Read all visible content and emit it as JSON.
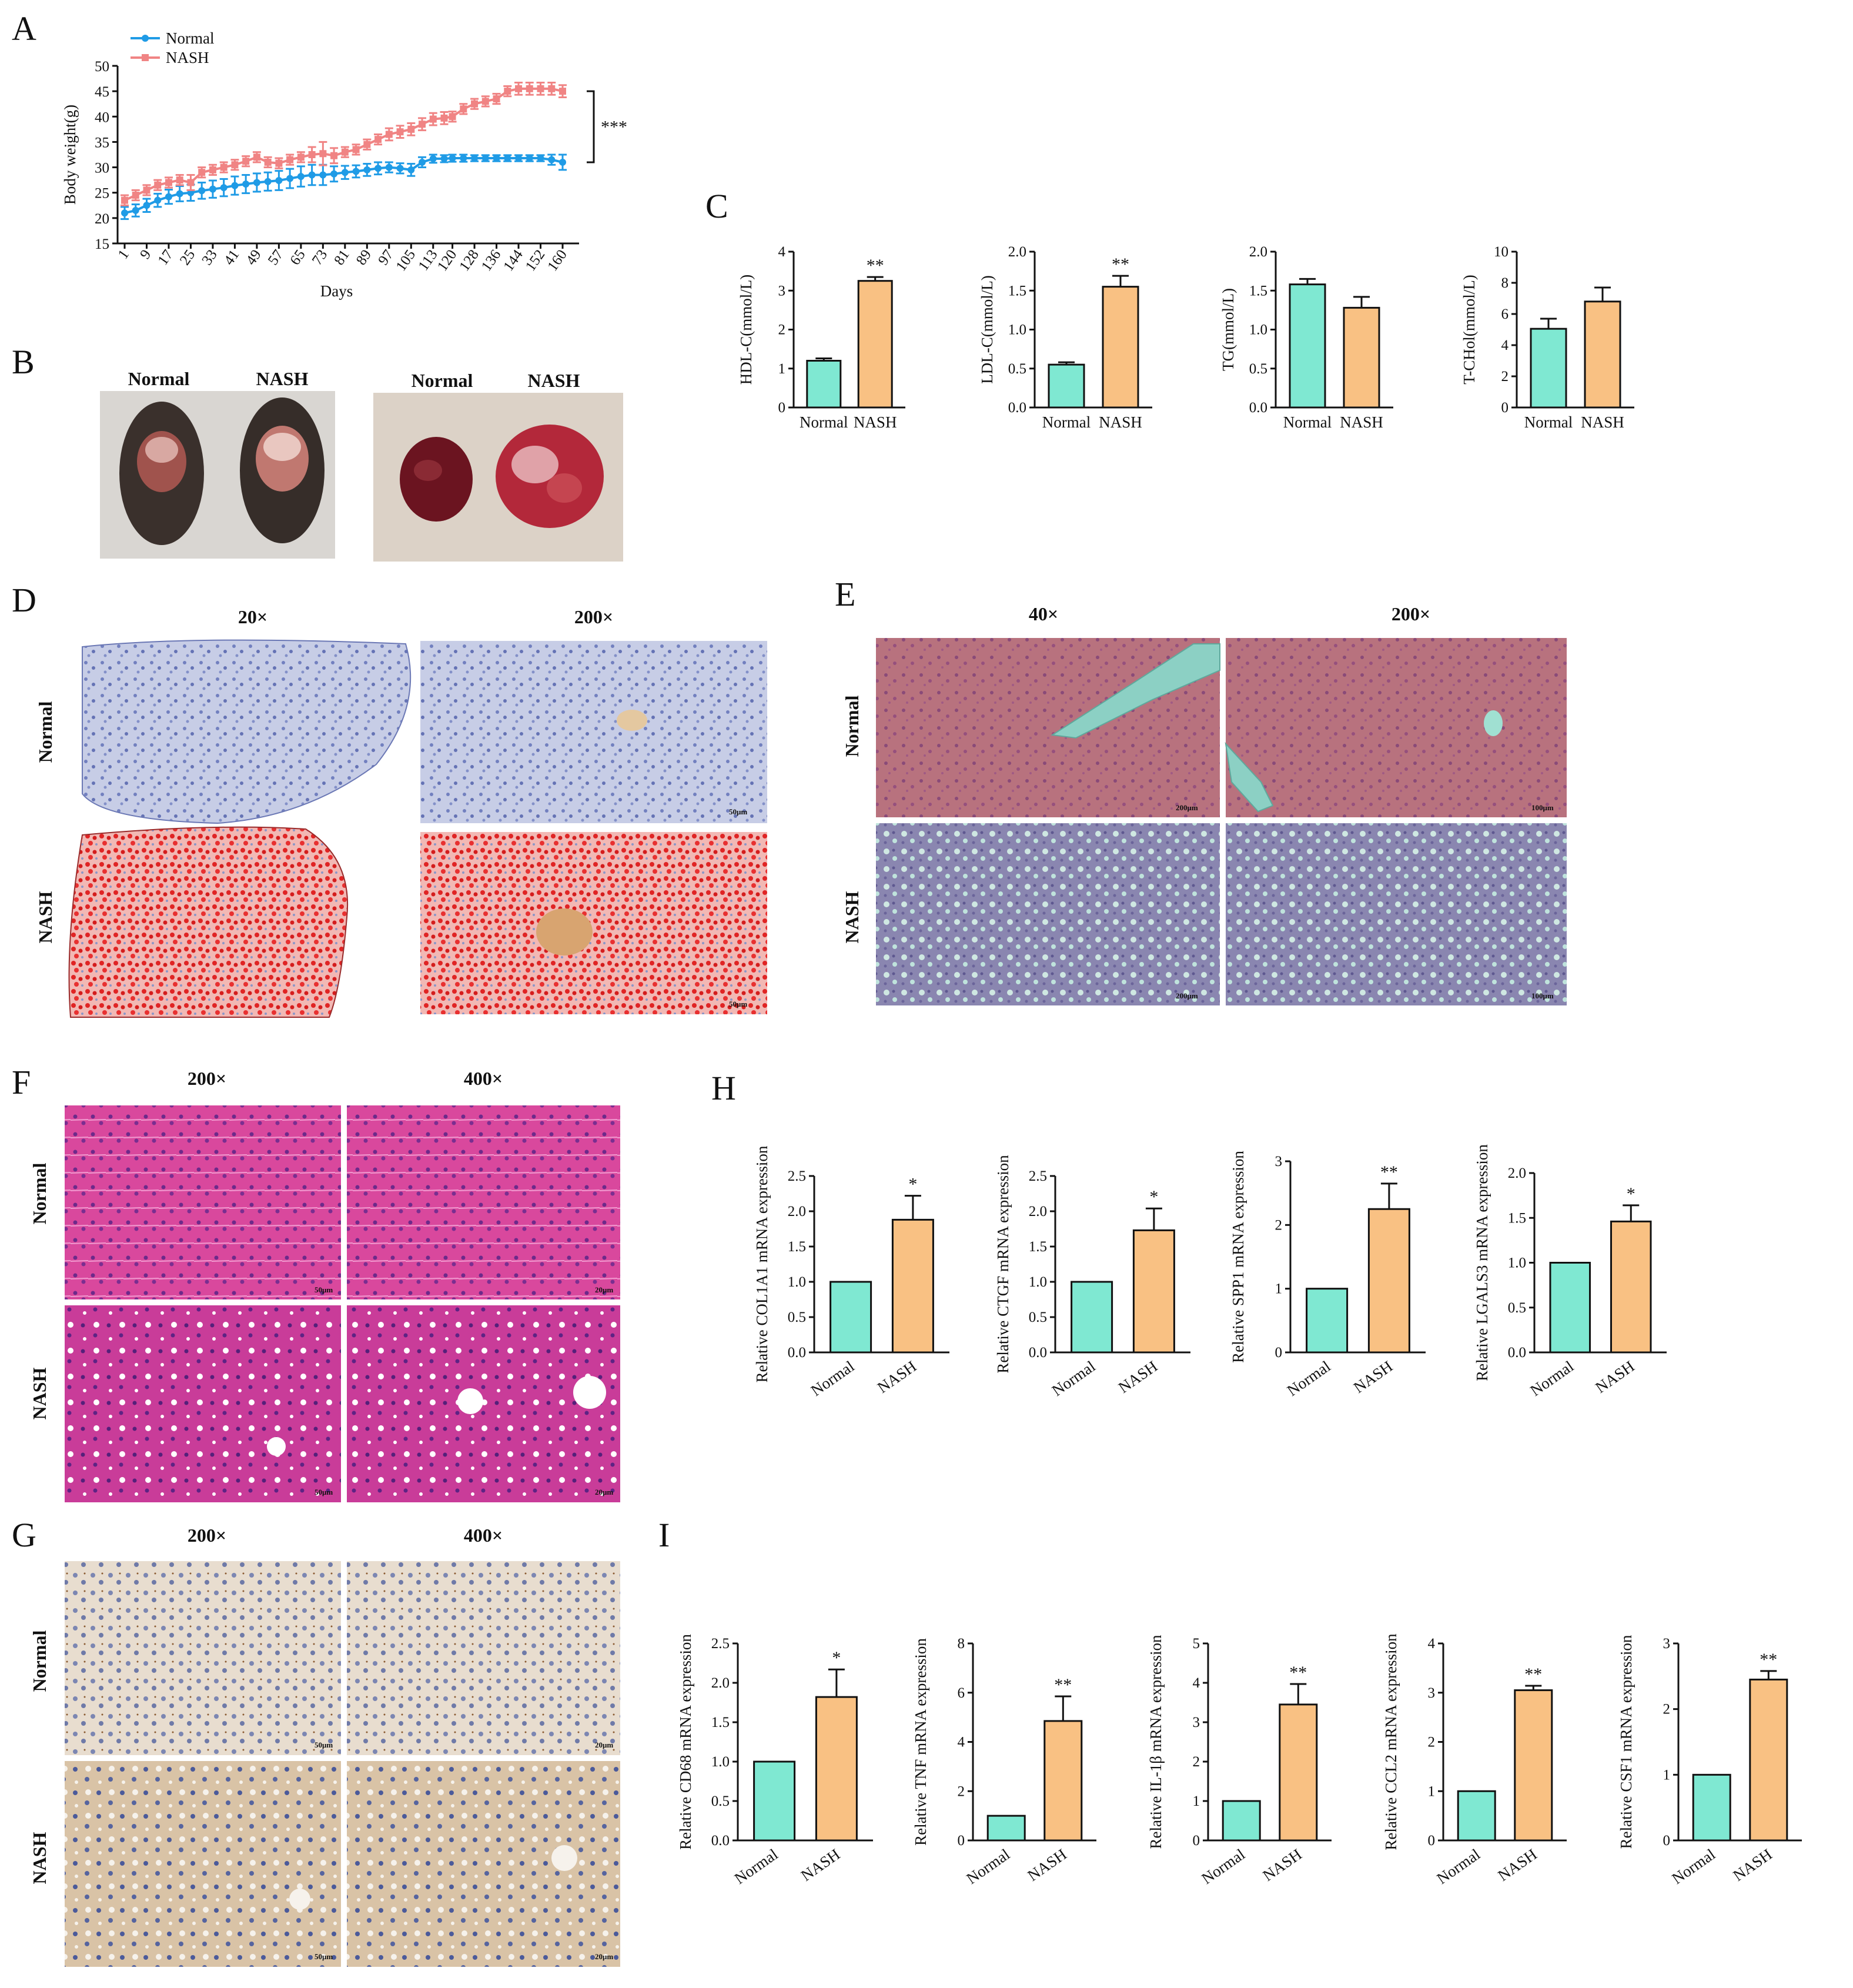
{
  "panels": {
    "A": "A",
    "B": "B",
    "C": "C",
    "D": "D",
    "E": "E",
    "F": "F",
    "G": "G",
    "H": "H",
    "I": "I"
  },
  "colors": {
    "normal": "#7fe8d2",
    "nash": "#f9c183",
    "line_normal": "#1f9be6",
    "line_nash": "#f08484",
    "bar_edge": "#111111"
  },
  "labels": {
    "normal": "Normal",
    "nash": "NASH"
  },
  "panelB": {
    "left_normal": "Normal",
    "left_nash": "NASH",
    "right_normal": "Normal",
    "right_nash": "NASH"
  },
  "panelD": {
    "mag_low": "20×",
    "mag_high": "200×",
    "row1": "Normal",
    "row2": "NASH",
    "scale": "50μm"
  },
  "panelE": {
    "mag_low": "40×",
    "mag_high": "200×",
    "row1": "Normal",
    "row2": "NASH",
    "scale_low": "200μm",
    "scale_high": "100μm"
  },
  "panelF": {
    "mag_low": "200×",
    "mag_high": "400×",
    "row1": "Normal",
    "row2": "NASH",
    "scale_low": "50μm",
    "scale_high": "20μm"
  },
  "panelG": {
    "mag_low": "200×",
    "mag_high": "400×",
    "row1": "Normal",
    "row2": "NASH",
    "scale_low": "50μm",
    "scale_high": "20μm"
  },
  "chart_data": [
    {
      "id": "A",
      "type": "line",
      "title": "",
      "xlabel": "Days",
      "ylabel": "Body weight(g)",
      "x": [
        1,
        5,
        9,
        13,
        17,
        21,
        25,
        29,
        33,
        37,
        41,
        45,
        49,
        53,
        57,
        61,
        65,
        69,
        73,
        77,
        81,
        85,
        89,
        93,
        97,
        101,
        105,
        109,
        113,
        117,
        120,
        124,
        128,
        132,
        136,
        140,
        144,
        148,
        152,
        156,
        160
      ],
      "xticks": [
        "1",
        "9",
        "17",
        "25",
        "33",
        "41",
        "49",
        "57",
        "65",
        "73",
        "81",
        "89",
        "97",
        "105",
        "113",
        "120",
        "128",
        "136",
        "144",
        "152",
        "160"
      ],
      "ylim": [
        15,
        50
      ],
      "yticks": [
        15,
        20,
        25,
        30,
        35,
        40,
        45,
        50
      ],
      "significance": "***",
      "series": [
        {
          "name": "Normal",
          "values": [
            21,
            21.5,
            22.5,
            23.5,
            24.2,
            24.8,
            25,
            25.4,
            25.7,
            26,
            26.4,
            26.7,
            27,
            27.2,
            27.4,
            27.8,
            28.2,
            28.5,
            28.5,
            28.7,
            29,
            29.2,
            29.5,
            29.8,
            30,
            29.8,
            29.5,
            31,
            31.7,
            31.7,
            31.8,
            31.8,
            31.8,
            31.8,
            31.8,
            31.8,
            31.8,
            31.8,
            31.8,
            31.5,
            31
          ],
          "errors": [
            1.2,
            1.2,
            1.3,
            1.3,
            1.4,
            1.5,
            1.6,
            1.6,
            1.7,
            1.7,
            1.8,
            1.8,
            1.8,
            1.8,
            1.9,
            1.9,
            2,
            2,
            2,
            1.5,
            1.3,
            1.2,
            1.2,
            1.2,
            1,
            1,
            1.2,
            1,
            0.8,
            0.7,
            0.7,
            0.7,
            0.6,
            0.6,
            0.6,
            0.6,
            0.6,
            0.6,
            0.6,
            1,
            1.5
          ]
        },
        {
          "name": "NASH",
          "values": [
            23.5,
            24.5,
            25.5,
            26.5,
            27,
            27.5,
            27,
            29,
            29.5,
            30,
            30.5,
            31.2,
            32,
            31,
            30.8,
            31.5,
            32,
            32.5,
            32.7,
            32.3,
            33,
            33.5,
            34.5,
            35.5,
            36.5,
            37,
            37.5,
            38.5,
            39.5,
            39.7,
            40,
            41.5,
            42.5,
            43,
            43.5,
            45,
            45.5,
            45.5,
            45.5,
            45.5,
            45
          ],
          "errors": [
            1,
            1,
            1,
            1,
            1,
            1,
            1.5,
            1,
            1,
            1,
            1,
            1,
            1,
            1,
            1,
            1,
            1,
            1.5,
            2.3,
            1.5,
            1,
            1,
            1,
            1,
            1.2,
            1.2,
            1.2,
            1.2,
            1.2,
            1.2,
            1,
            1,
            1,
            1,
            1,
            1,
            1.2,
            1.2,
            1.2,
            1.2,
            1.2
          ]
        }
      ]
    },
    {
      "id": "C1",
      "type": "bar",
      "categories": [
        "Normal",
        "NASH"
      ],
      "ylabel": "HDL-C(mmol/L)",
      "ylim": [
        0,
        4
      ],
      "yticks": [
        "0",
        "1",
        "2",
        "3",
        "4"
      ],
      "values": [
        1.2,
        3.25
      ],
      "errors": [
        0.06,
        0.1
      ],
      "annotations": [
        "",
        "**"
      ]
    },
    {
      "id": "C2",
      "type": "bar",
      "categories": [
        "Normal",
        "NASH"
      ],
      "ylabel": "LDL-C(mmol/L)",
      "ylim": [
        0,
        2
      ],
      "yticks": [
        "0.0",
        "0.5",
        "1.0",
        "1.5",
        "2.0"
      ],
      "values": [
        0.55,
        1.55
      ],
      "errors": [
        0.03,
        0.14
      ],
      "annotations": [
        "",
        "**"
      ]
    },
    {
      "id": "C3",
      "type": "bar",
      "categories": [
        "Normal",
        "NASH"
      ],
      "ylabel": "TG(mmol/L)",
      "ylim": [
        0,
        2
      ],
      "yticks": [
        "0.0",
        "0.5",
        "1.0",
        "1.5",
        "2.0"
      ],
      "values": [
        1.58,
        1.28
      ],
      "errors": [
        0.07,
        0.14
      ],
      "annotations": [
        "",
        ""
      ]
    },
    {
      "id": "C4",
      "type": "bar",
      "categories": [
        "Normal",
        "NASH"
      ],
      "ylabel": "T-CHol(mmol/L)",
      "ylim": [
        0,
        10
      ],
      "yticks": [
        "0",
        "2",
        "4",
        "6",
        "8",
        "10"
      ],
      "values": [
        5.05,
        6.8
      ],
      "errors": [
        0.65,
        0.9
      ],
      "annotations": [
        "",
        ""
      ]
    },
    {
      "id": "H1",
      "type": "bar",
      "categories": [
        "Normal",
        "NASH"
      ],
      "ylabel": "Relative COL1A1 mRNA expression",
      "ylim": [
        0,
        2.5
      ],
      "yticks": [
        "0.0",
        "0.5",
        "1.0",
        "1.5",
        "2.0",
        "2.5"
      ],
      "values": [
        1.0,
        1.88
      ],
      "errors": [
        0,
        0.34
      ],
      "annotations": [
        "",
        "*"
      ]
    },
    {
      "id": "H2",
      "type": "bar",
      "categories": [
        "Normal",
        "NASH"
      ],
      "ylabel": "Relative CTGF mRNA expression",
      "ylim": [
        0,
        2.5
      ],
      "yticks": [
        "0.0",
        "0.5",
        "1.0",
        "1.5",
        "2.0",
        "2.5"
      ],
      "values": [
        1.0,
        1.73
      ],
      "errors": [
        0,
        0.31
      ],
      "annotations": [
        "",
        "*"
      ]
    },
    {
      "id": "H3",
      "type": "bar",
      "categories": [
        "Normal",
        "NASH"
      ],
      "ylabel": "Relative SPP1 mRNA expression",
      "ylim": [
        0,
        3
      ],
      "yticks": [
        "0",
        "1",
        "2",
        "3"
      ],
      "values": [
        1.0,
        2.25
      ],
      "errors": [
        0,
        0.4
      ],
      "annotations": [
        "",
        "**"
      ]
    },
    {
      "id": "H4",
      "type": "bar",
      "categories": [
        "Normal",
        "NASH"
      ],
      "ylabel": "Relative LGALS3 mRNA expression",
      "ylim": [
        0,
        2
      ],
      "yticks": [
        "0.0",
        "0.5",
        "1.0",
        "1.5",
        "2.0"
      ],
      "values": [
        1.0,
        1.46
      ],
      "errors": [
        0,
        0.18
      ],
      "annotations": [
        "",
        "*"
      ]
    },
    {
      "id": "I1",
      "type": "bar",
      "categories": [
        "Normal",
        "NASH"
      ],
      "ylabel": "Relative CD68 mRNA expression",
      "ylim": [
        0,
        2.5
      ],
      "yticks": [
        "0.0",
        "0.5",
        "1.0",
        "1.5",
        "2.0",
        "2.5"
      ],
      "values": [
        1.0,
        1.82
      ],
      "errors": [
        0,
        0.35
      ],
      "annotations": [
        "",
        "*"
      ]
    },
    {
      "id": "I2",
      "type": "bar",
      "categories": [
        "Normal",
        "NASH"
      ],
      "ylabel": "Relative TNF mRNA expression",
      "ylim": [
        0,
        8
      ],
      "yticks": [
        "0",
        "2",
        "4",
        "6",
        "8"
      ],
      "values": [
        1.0,
        4.85
      ],
      "errors": [
        0,
        1.0
      ],
      "annotations": [
        "",
        "**"
      ]
    },
    {
      "id": "I3",
      "type": "bar",
      "categories": [
        "Normal",
        "NASH"
      ],
      "ylabel": "Relative IL-1β mRNA expression",
      "ylim": [
        0,
        5
      ],
      "yticks": [
        "0",
        "1",
        "2",
        "3",
        "4",
        "5"
      ],
      "values": [
        1.0,
        3.45
      ],
      "errors": [
        0,
        0.52
      ],
      "annotations": [
        "",
        "**"
      ]
    },
    {
      "id": "I4",
      "type": "bar",
      "categories": [
        "Normal",
        "NASH"
      ],
      "ylabel": "Relative CCL2 mRNA expression",
      "ylim": [
        0,
        4
      ],
      "yticks": [
        "0",
        "1",
        "2",
        "3",
        "4"
      ],
      "values": [
        1.0,
        3.05
      ],
      "errors": [
        0,
        0.09
      ],
      "annotations": [
        "",
        "**"
      ]
    },
    {
      "id": "I5",
      "type": "bar",
      "categories": [
        "Normal",
        "NASH"
      ],
      "ylabel": "Relative CSF1 mRNA expression",
      "ylim": [
        0,
        3
      ],
      "yticks": [
        "0",
        "1",
        "2",
        "3"
      ],
      "values": [
        1.0,
        2.45
      ],
      "errors": [
        0,
        0.13
      ],
      "annotations": [
        "",
        "**"
      ]
    }
  ]
}
